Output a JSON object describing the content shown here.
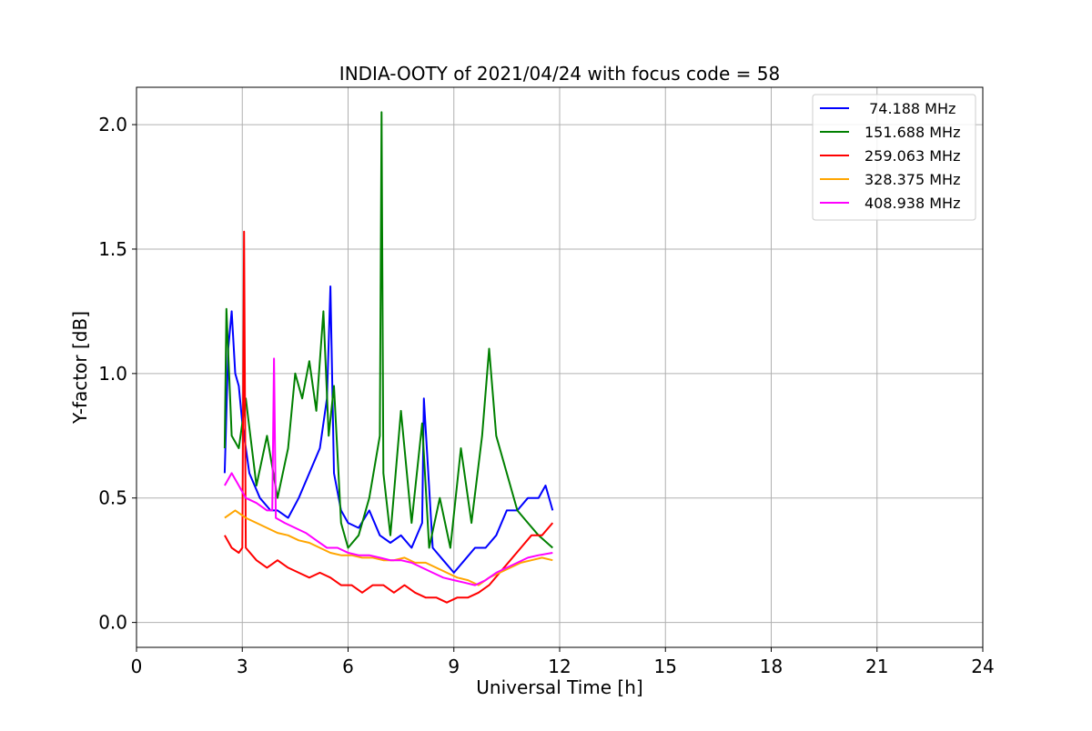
{
  "chart_data": {
    "type": "line",
    "title": "INDIA-OOTY of 2021/04/24 with focus code = 58",
    "xlabel": "Universal Time [h]",
    "ylabel": "Y-factor [dB]",
    "xlim": [
      0,
      24
    ],
    "ylim": [
      -0.1,
      2.15
    ],
    "xticks": [
      0,
      3,
      6,
      9,
      12,
      15,
      18,
      21,
      24
    ],
    "yticks": [
      0.0,
      0.5,
      1.0,
      1.5,
      2.0
    ],
    "xtick_labels": [
      "0",
      "3",
      "6",
      "9",
      "12",
      "15",
      "18",
      "21",
      "24"
    ],
    "ytick_labels": [
      "0.0",
      "0.5",
      "1.0",
      "1.5",
      "2.0"
    ],
    "grid": true,
    "legend_position": "top-right",
    "series": [
      {
        "name": " 74.188 MHz",
        "color": "#0000ff",
        "x": [
          2.5,
          2.6,
          2.7,
          2.8,
          2.9,
          3.0,
          3.2,
          3.5,
          3.8,
          4.0,
          4.3,
          4.6,
          4.9,
          5.2,
          5.4,
          5.5,
          5.6,
          5.8,
          6.0,
          6.3,
          6.6,
          6.9,
          7.2,
          7.5,
          7.8,
          8.1,
          8.15,
          8.4,
          8.7,
          9.0,
          9.3,
          9.6,
          9.9,
          10.2,
          10.5,
          10.8,
          11.1,
          11.4,
          11.6,
          11.8
        ],
        "y": [
          0.6,
          1.1,
          1.25,
          1.0,
          0.95,
          0.8,
          0.6,
          0.5,
          0.45,
          0.45,
          0.42,
          0.5,
          0.6,
          0.7,
          0.9,
          1.35,
          0.6,
          0.45,
          0.4,
          0.38,
          0.45,
          0.35,
          0.32,
          0.35,
          0.3,
          0.4,
          0.9,
          0.3,
          0.25,
          0.2,
          0.25,
          0.3,
          0.3,
          0.35,
          0.45,
          0.45,
          0.5,
          0.5,
          0.55,
          0.45
        ]
      },
      {
        "name": "151.688 MHz",
        "color": "#008000",
        "x": [
          2.5,
          2.55,
          2.7,
          2.9,
          3.1,
          3.4,
          3.7,
          4.0,
          4.3,
          4.5,
          4.7,
          4.9,
          5.1,
          5.3,
          5.45,
          5.6,
          5.8,
          6.0,
          6.3,
          6.6,
          6.9,
          6.95,
          7.0,
          7.2,
          7.5,
          7.8,
          8.1,
          8.3,
          8.6,
          8.9,
          9.2,
          9.5,
          9.8,
          10.0,
          10.2,
          10.5,
          10.8,
          11.1,
          11.4,
          11.8
        ],
        "y": [
          0.7,
          1.26,
          0.75,
          0.7,
          0.9,
          0.55,
          0.75,
          0.5,
          0.7,
          1.0,
          0.9,
          1.05,
          0.85,
          1.25,
          0.75,
          0.95,
          0.4,
          0.3,
          0.35,
          0.5,
          0.75,
          2.05,
          0.6,
          0.35,
          0.85,
          0.4,
          0.8,
          0.3,
          0.5,
          0.3,
          0.7,
          0.4,
          0.75,
          1.1,
          0.75,
          0.6,
          0.45,
          0.4,
          0.35,
          0.3
        ]
      },
      {
        "name": "259.063 MHz",
        "color": "#ff0000",
        "x": [
          2.5,
          2.7,
          2.9,
          3.0,
          3.05,
          3.1,
          3.4,
          3.7,
          4.0,
          4.3,
          4.6,
          4.9,
          5.2,
          5.5,
          5.8,
          6.1,
          6.4,
          6.7,
          7.0,
          7.3,
          7.6,
          7.9,
          8.2,
          8.5,
          8.8,
          9.1,
          9.4,
          9.7,
          10.0,
          10.3,
          10.6,
          10.9,
          11.2,
          11.5,
          11.8
        ],
        "y": [
          0.35,
          0.3,
          0.28,
          0.3,
          1.57,
          0.3,
          0.25,
          0.22,
          0.25,
          0.22,
          0.2,
          0.18,
          0.2,
          0.18,
          0.15,
          0.15,
          0.12,
          0.15,
          0.15,
          0.12,
          0.15,
          0.12,
          0.1,
          0.1,
          0.08,
          0.1,
          0.1,
          0.12,
          0.15,
          0.2,
          0.25,
          0.3,
          0.35,
          0.35,
          0.4
        ]
      },
      {
        "name": "328.375 MHz",
        "color": "#ffa500",
        "x": [
          2.5,
          2.8,
          3.1,
          3.4,
          3.7,
          4.0,
          4.3,
          4.6,
          4.9,
          5.2,
          5.5,
          5.8,
          6.1,
          6.4,
          6.7,
          7.0,
          7.3,
          7.6,
          7.9,
          8.2,
          8.5,
          8.8,
          9.1,
          9.4,
          9.7,
          10.0,
          10.3,
          10.6,
          10.9,
          11.2,
          11.5,
          11.8
        ],
        "y": [
          0.42,
          0.45,
          0.42,
          0.4,
          0.38,
          0.36,
          0.35,
          0.33,
          0.32,
          0.3,
          0.28,
          0.27,
          0.27,
          0.26,
          0.26,
          0.25,
          0.25,
          0.26,
          0.24,
          0.24,
          0.22,
          0.2,
          0.18,
          0.17,
          0.15,
          0.18,
          0.2,
          0.22,
          0.24,
          0.25,
          0.26,
          0.25
        ]
      },
      {
        "name": "408.938 MHz",
        "color": "#ff00ff",
        "x": [
          2.5,
          2.7,
          2.9,
          3.1,
          3.4,
          3.7,
          3.85,
          3.9,
          3.95,
          4.2,
          4.5,
          4.8,
          5.1,
          5.4,
          5.7,
          6.0,
          6.3,
          6.6,
          6.9,
          7.2,
          7.5,
          7.8,
          8.1,
          8.4,
          8.7,
          9.0,
          9.3,
          9.6,
          9.9,
          10.2,
          10.5,
          10.8,
          11.1,
          11.4,
          11.8
        ],
        "y": [
          0.55,
          0.6,
          0.55,
          0.5,
          0.48,
          0.45,
          0.45,
          1.06,
          0.42,
          0.4,
          0.38,
          0.36,
          0.33,
          0.3,
          0.3,
          0.28,
          0.27,
          0.27,
          0.26,
          0.25,
          0.25,
          0.24,
          0.22,
          0.2,
          0.18,
          0.17,
          0.16,
          0.15,
          0.17,
          0.2,
          0.22,
          0.24,
          0.26,
          0.27,
          0.28
        ]
      }
    ]
  }
}
